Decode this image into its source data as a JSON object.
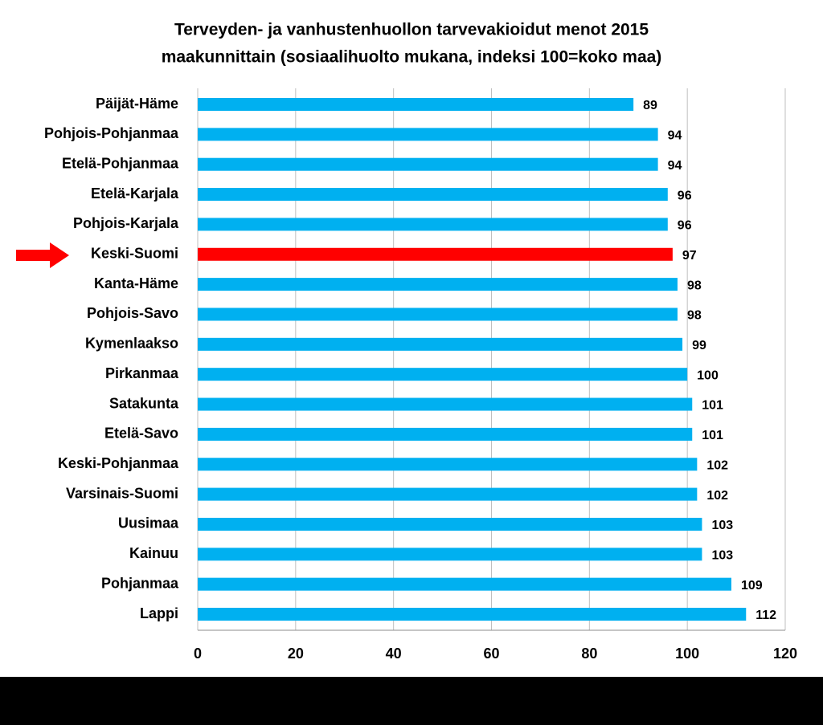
{
  "chart_data": {
    "type": "barh",
    "title": [
      "Terveyden- ja vanhustenhuollon tarvevakioidut menot 2015",
      "maakunnittain  (sosiaalihuolto mukana, indeksi 100=koko maa)"
    ],
    "categories": [
      "Päijät-Häme",
      "Pohjois-Pohjanmaa",
      "Etelä-Pohjanmaa",
      "Etelä-Karjala",
      "Pohjois-Karjala",
      "Keski-Suomi",
      "Kanta-Häme",
      "Pohjois-Savo",
      "Kymenlaakso",
      "Pirkanmaa",
      "Satakunta",
      "Etelä-Savo",
      "Keski-Pohjanmaa",
      "Varsinais-Suomi",
      "Uusimaa",
      "Kainuu",
      "Pohjanmaa",
      "Lappi"
    ],
    "values": [
      89,
      94,
      94,
      96,
      96,
      97,
      98,
      98,
      99,
      100,
      101,
      101,
      102,
      102,
      103,
      103,
      109,
      112
    ],
    "colors": [
      "#00b0f0",
      "#00b0f0",
      "#00b0f0",
      "#00b0f0",
      "#00b0f0",
      "#ff0000",
      "#00b0f0",
      "#00b0f0",
      "#00b0f0",
      "#00b0f0",
      "#00b0f0",
      "#00b0f0",
      "#00b0f0",
      "#00b0f0",
      "#00b0f0",
      "#00b0f0",
      "#00b0f0",
      "#00b0f0"
    ],
    "xlim": [
      0,
      120
    ],
    "xticks": [
      0,
      20,
      40,
      60,
      80,
      100,
      120
    ],
    "grid": true
  }
}
